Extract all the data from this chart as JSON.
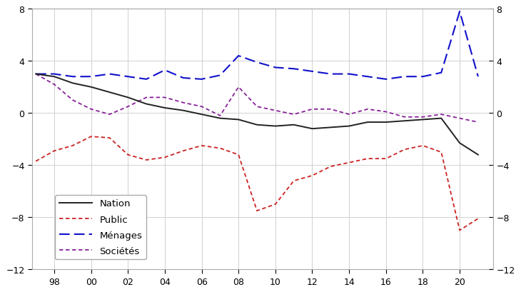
{
  "years": [
    1997,
    1998,
    1999,
    2000,
    2001,
    2002,
    2003,
    2004,
    2005,
    2006,
    2007,
    2008,
    2009,
    2010,
    2011,
    2012,
    2013,
    2014,
    2015,
    2016,
    2017,
    2018,
    2019,
    2020,
    2021
  ],
  "nation": [
    3.0,
    2.8,
    2.3,
    2.0,
    1.6,
    1.2,
    0.7,
    0.4,
    0.2,
    -0.1,
    -0.4,
    -0.5,
    -0.9,
    -1.0,
    -0.9,
    -1.2,
    -1.1,
    -1.0,
    -0.7,
    -0.7,
    -0.6,
    -0.5,
    -0.4,
    -2.3,
    -3.2
  ],
  "public": [
    -3.7,
    -2.9,
    -2.5,
    -1.8,
    -1.9,
    -3.2,
    -3.6,
    -3.4,
    -2.9,
    -2.5,
    -2.7,
    -3.2,
    -7.5,
    -7.0,
    -5.2,
    -4.8,
    -4.1,
    -3.8,
    -3.5,
    -3.5,
    -2.8,
    -2.5,
    -3.0,
    -9.0,
    -8.1
  ],
  "menages": [
    3.0,
    3.0,
    2.8,
    2.8,
    3.0,
    2.8,
    2.6,
    3.3,
    2.7,
    2.6,
    2.9,
    4.4,
    3.9,
    3.5,
    3.4,
    3.2,
    3.0,
    3.0,
    2.8,
    2.6,
    2.8,
    2.8,
    3.1,
    7.8,
    2.8
  ],
  "societes": [
    3.0,
    2.2,
    1.0,
    0.3,
    -0.1,
    0.5,
    1.2,
    1.2,
    0.8,
    0.5,
    -0.2,
    2.0,
    0.5,
    0.2,
    -0.1,
    0.3,
    0.3,
    -0.1,
    0.3,
    0.1,
    -0.3,
    -0.3,
    -0.1,
    -0.4,
    -0.7
  ],
  "nation_color": "#222222",
  "public_color": "#cc2222",
  "menages_color": "#1111cc",
  "societes_color": "#882299",
  "ylim": [
    -12,
    8
  ],
  "yticks": [
    -12,
    -8,
    -4,
    0,
    4,
    8
  ],
  "xtick_labels": [
    "98",
    "00",
    "02",
    "04",
    "06",
    "08",
    "10",
    "12",
    "14",
    "16",
    "18",
    "20"
  ],
  "xtick_years": [
    1998,
    2000,
    2002,
    2004,
    2006,
    2008,
    2010,
    2012,
    2014,
    2016,
    2018,
    2020
  ],
  "legend_labels": [
    "Nation",
    "Public",
    "Ménages",
    "Sociétés"
  ],
  "bg_color": "#ffffff"
}
